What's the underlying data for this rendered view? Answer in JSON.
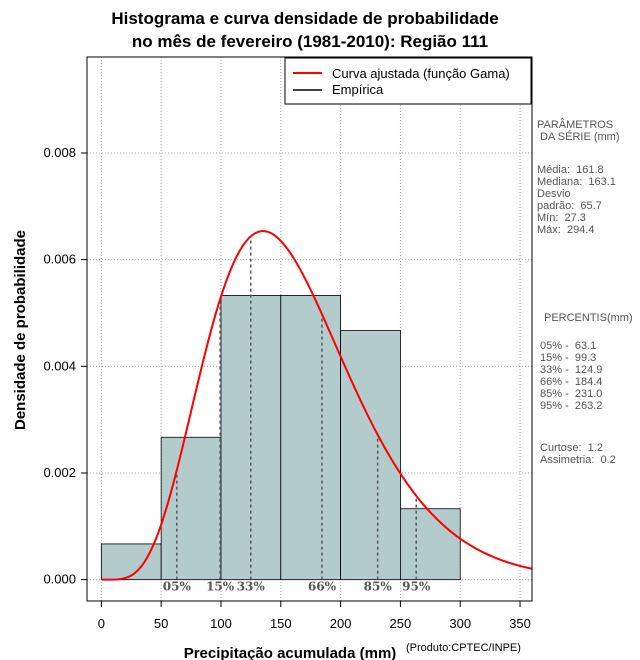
{
  "chart_data": {
    "type": "bar",
    "title_lines": [
      "Histograma e curva densidade de probabilidade",
      "no mês de fevereiro (1981-2010): Região 111"
    ],
    "xlabel": "Precipitação acumulada (mm)",
    "ylabel": "Densidade de probabilidade",
    "xlim": [
      -12,
      360
    ],
    "ylim": [
      -0.0004,
      0.0098
    ],
    "x_ticks": [
      0,
      50,
      100,
      150,
      200,
      250,
      300,
      350
    ],
    "y_ticks": [
      0.0,
      0.002,
      0.004,
      0.006,
      0.008
    ],
    "y_tick_labels": [
      "0.000",
      "0.002",
      "0.004",
      "0.006",
      "0.008"
    ],
    "grid": true,
    "bins": [
      {
        "start": 0,
        "end": 50,
        "density": 0.00067
      },
      {
        "start": 50,
        "end": 100,
        "density": 0.00267
      },
      {
        "start": 100,
        "end": 150,
        "density": 0.00533
      },
      {
        "start": 150,
        "end": 200,
        "density": 0.00533
      },
      {
        "start": 200,
        "end": 250,
        "density": 0.00467
      },
      {
        "start": 250,
        "end": 300,
        "density": 0.00133
      }
    ],
    "bar_color": "#b4cbcb",
    "curve": {
      "name": "Curva ajustada (função Gama)",
      "distribution": "gamma",
      "mean": 161.8,
      "sd": 65.7,
      "color": "#ff0000"
    },
    "empirical_legend": "Empírica",
    "percentiles": [
      {
        "label": "05%",
        "value": 63.1
      },
      {
        "label": "15%",
        "value": 99.3
      },
      {
        "label": "33%",
        "value": 124.9
      },
      {
        "label": "66%",
        "value": 184.4
      },
      {
        "label": "85%",
        "value": 231.0
      },
      {
        "label": "95%",
        "value": 263.2
      }
    ]
  },
  "side_panel": {
    "params_header": "PARÂMETROS\n DA SÉRIE (mm)",
    "params_body": "Média:  161.8\nMediana:  163.1\nDesvio\npadrão:  65.7\nMín:  27.3\nMáx:  294.4",
    "percentis_header": "PERCENTIS(mm)",
    "percentis_body": "05% -  63.1\n15% -  99.3\n33% -  124.9\n66% -  184.4\n85% -  231.0\n95% -  263.2",
    "stats_body": "Curtose:  1.2\nAssimetria:  0.2"
  },
  "credit": "(Produto:CPTEC/INPE)"
}
